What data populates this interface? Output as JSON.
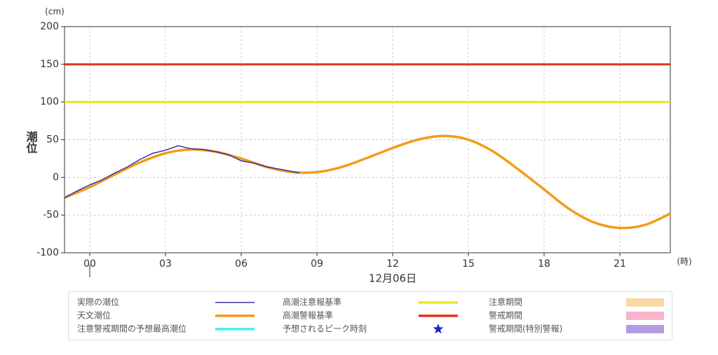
{
  "chart_data": {
    "type": "line",
    "y_unit": "(cm)",
    "y_label": "潮位",
    "x_unit": "(時)",
    "date_label": "12月06日",
    "xlim": [
      -1,
      23
    ],
    "xticks": [
      {
        "value": 0,
        "label": "00"
      },
      {
        "value": 3,
        "label": "03"
      },
      {
        "value": 6,
        "label": "06"
      },
      {
        "value": 9,
        "label": "09"
      },
      12,
      15,
      18,
      21
    ],
    "ylim": [
      -100,
      200
    ],
    "yticks": [
      -100,
      -50,
      0,
      50,
      100,
      150,
      200
    ],
    "grid": true,
    "series": [
      {
        "name": "実際の潮位",
        "color": "#3a2fa8",
        "x": [
          -1,
          -0.5,
          0,
          0.5,
          1,
          1.5,
          2,
          2.5,
          3,
          3.5,
          4,
          4.5,
          5,
          5.5,
          6,
          6.5,
          7,
          7.5,
          8,
          8.3
        ],
        "values": [
          -27,
          -18,
          -10,
          -3,
          6,
          14,
          24,
          32,
          36,
          42,
          38,
          37,
          34,
          30,
          22,
          19,
          14,
          11,
          8,
          6
        ]
      },
      {
        "name": "天文潮位",
        "color": "#f39c1a",
        "x": [
          -1,
          0,
          1,
          2,
          3,
          4,
          5,
          6,
          7,
          8,
          9,
          10,
          11,
          12,
          13,
          14,
          15,
          16,
          17,
          18,
          19,
          20,
          21,
          22,
          23
        ],
        "values": [
          -27,
          -13,
          4,
          20,
          32,
          37,
          34,
          25,
          14,
          7,
          7,
          14,
          26,
          39,
          50,
          55,
          50,
          34,
          10,
          -16,
          -42,
          -60,
          -67,
          -63,
          -48
        ]
      }
    ],
    "thresholds": [
      {
        "name": "高潮注意報基準",
        "color": "#e8e81a",
        "value": 100
      },
      {
        "name": "高潮警報基準",
        "color": "#e2321c",
        "value": 150
      }
    ],
    "other_legend": [
      {
        "name": "注意警戒期間の予想最高潮位",
        "color": "#3ff0ee",
        "symbol": "line"
      },
      {
        "name": "予想されるピーク時刻",
        "color": "#1a22c8",
        "symbol": "star"
      },
      {
        "name": "注意期間",
        "color": "#f9d9a8",
        "symbol": "rect"
      },
      {
        "name": "警戒期間",
        "color": "#f8b4cb",
        "symbol": "rect"
      },
      {
        "name": "警戒期間(特別警報)",
        "color": "#b49ce2",
        "symbol": "rect"
      }
    ]
  }
}
